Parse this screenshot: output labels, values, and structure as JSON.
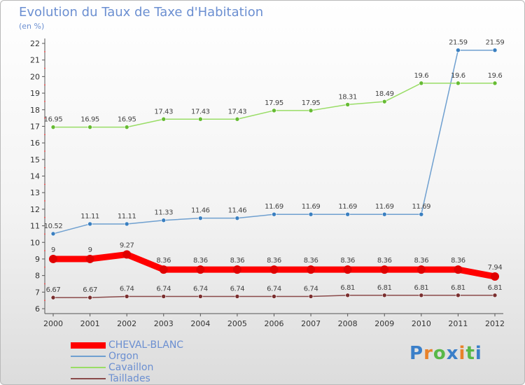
{
  "title": "Evolution du Taux de Taxe d'Habitation",
  "subtitle": "(en %)",
  "logo": {
    "text": "Proxiti",
    "letter_colors": [
      "#3a7fc9",
      "#e8822a",
      "#58b848",
      "#3a7fc9",
      "#e8822a",
      "#58b848",
      "#3a7fc9"
    ]
  },
  "chart_data": {
    "type": "line",
    "title": "Evolution du Taux de Taxe d'Habitation",
    "ylabel": "(en %)",
    "xlabel": "",
    "x": [
      "2000",
      "2001",
      "2002",
      "2003",
      "2004",
      "2005",
      "2006",
      "2007",
      "2008",
      "2009",
      "2010",
      "2011",
      "2012"
    ],
    "ylim": [
      6,
      22
    ],
    "yticks": [
      6,
      7,
      8,
      9,
      10,
      11,
      12,
      13,
      14,
      15,
      16,
      17,
      18,
      19,
      20,
      21,
      22
    ],
    "grid": false,
    "legend_position": "bottom-left",
    "series": [
      {
        "name": "CHEVAL-BLANC",
        "color": "#ff0000",
        "marker_color": "#e00000",
        "emphasis": true,
        "values": [
          9,
          9,
          9.27,
          8.36,
          8.36,
          8.36,
          8.36,
          8.36,
          8.36,
          8.36,
          8.36,
          8.36,
          7.94
        ],
        "labels": [
          "9",
          "9",
          "9.27",
          "8.36",
          "8.36",
          "8.36",
          "8.36",
          "8.36",
          "8.36",
          "8.36",
          "8.36",
          "8.36",
          "7.94"
        ]
      },
      {
        "name": "Orgon",
        "color": "#6fa0d0",
        "marker_color": "#3a7fc0",
        "emphasis": false,
        "values": [
          10.52,
          11.11,
          11.11,
          11.33,
          11.46,
          11.46,
          11.69,
          11.69,
          11.69,
          11.69,
          11.69,
          21.59,
          21.59
        ],
        "labels": [
          "10.52",
          "11.11",
          "11.11",
          "11.33",
          "11.46",
          "11.46",
          "11.69",
          "11.69",
          "11.69",
          "11.69",
          "11.69",
          "21.59",
          "21.59"
        ]
      },
      {
        "name": "Cavaillon",
        "color": "#99dd66",
        "marker_color": "#66bb33",
        "emphasis": false,
        "values": [
          16.95,
          16.95,
          16.95,
          17.43,
          17.43,
          17.43,
          17.95,
          17.95,
          18.31,
          18.49,
          19.6,
          19.6,
          19.6
        ],
        "labels": [
          "16.95",
          "16.95",
          "16.95",
          "17.43",
          "17.43",
          "17.43",
          "17.95",
          "17.95",
          "18.31",
          "18.49",
          "19.6",
          "19.6",
          "19.6"
        ]
      },
      {
        "name": "Taillades",
        "color": "#8a4a4a",
        "marker_color": "#7a2f2f",
        "emphasis": false,
        "values": [
          6.67,
          6.67,
          6.74,
          6.74,
          6.74,
          6.74,
          6.74,
          6.74,
          6.81,
          6.81,
          6.81,
          6.81,
          6.81
        ],
        "labels": [
          "6.67",
          "6.67",
          "6.74",
          "6.74",
          "6.74",
          "6.74",
          "6.74",
          "6.74",
          "6.81",
          "6.81",
          "6.81",
          "6.81",
          "6.81"
        ]
      }
    ]
  }
}
